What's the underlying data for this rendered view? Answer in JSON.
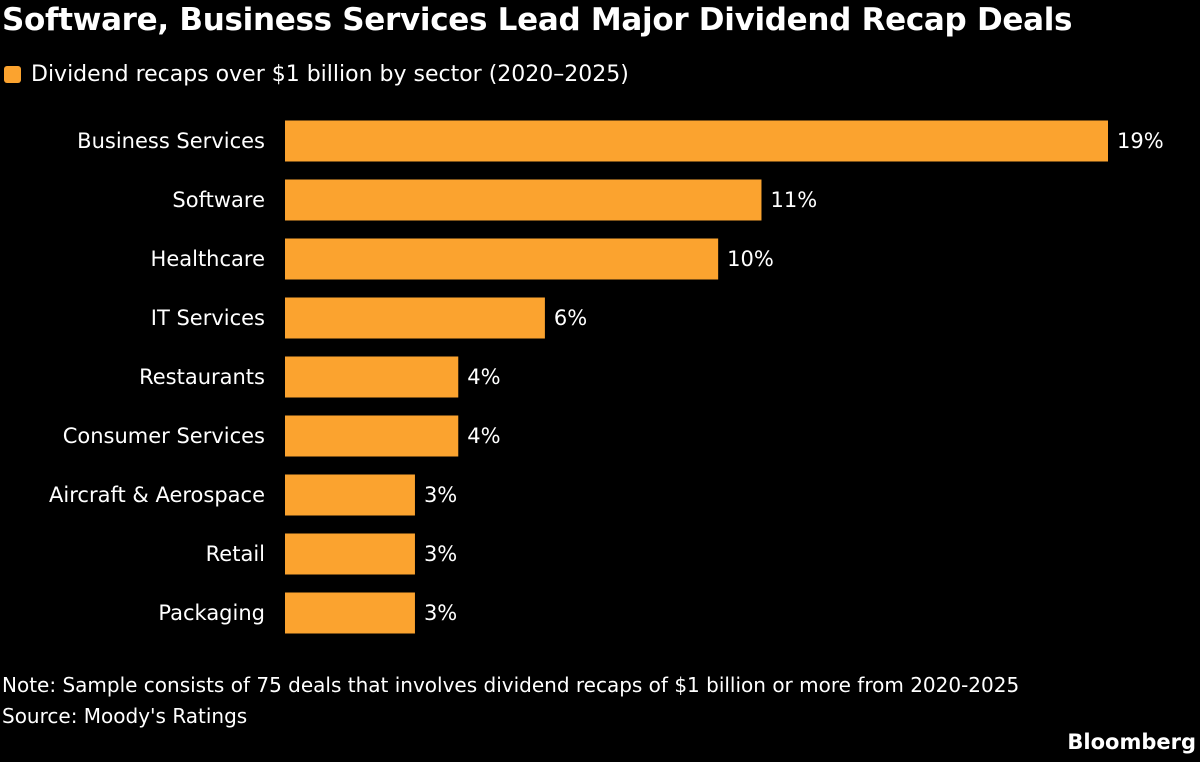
{
  "chart_data": {
    "type": "bar",
    "orientation": "horizontal",
    "title": "Software, Business Services Lead Major Dividend Recap Deals",
    "legend": [
      "Dividend recaps over $1 billion by sector (2020–2025)"
    ],
    "legend_placement": "top-left",
    "categories": [
      "Business Services",
      "Software",
      "Healthcare",
      "IT Services",
      "Restaurants",
      "Consumer Services",
      "Aircraft & Aerospace",
      "Retail",
      "Packaging"
    ],
    "series": [
      {
        "name": "Dividend recaps over $1 billion by sector (2020–2025)",
        "values": [
          19,
          11,
          10,
          6,
          4,
          4,
          3,
          3,
          3
        ]
      }
    ],
    "data_labels": [
      "19%",
      "11%",
      "10%",
      "6%",
      "4%",
      "4%",
      "3%",
      "3%",
      "3%"
    ],
    "unit": "%",
    "xlim": [
      0,
      19
    ],
    "grid": false,
    "colors": {
      "bar": "#fba32f",
      "background": "#000000",
      "text": "#ffffff"
    }
  },
  "footer": {
    "note": "Note: Sample consists of 75 deals that involves dividend recaps of $1 billion or more from 2020-2025",
    "source": "Source: Moody's Ratings",
    "logo": "Bloomberg"
  }
}
